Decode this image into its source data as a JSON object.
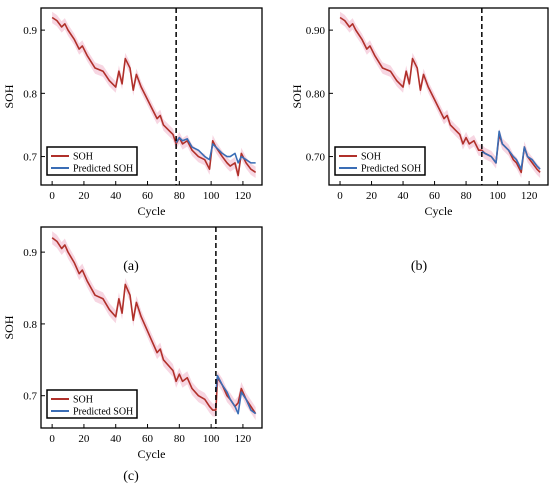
{
  "figure": {
    "panel_labels": [
      "(a)",
      "(b)",
      "(c)"
    ]
  },
  "colors": {
    "soh": "#b0302a",
    "pred": "#3a6db5",
    "band": "#f4c8d8",
    "split": "#000000"
  },
  "chart_data": [
    {
      "type": "line",
      "panel": "(a)",
      "xlabel": "Cycle",
      "ylabel": "SOH",
      "xlim": [
        -7,
        132
      ],
      "ylim": [
        0.655,
        0.935
      ],
      "xticks": [
        0,
        20,
        40,
        60,
        80,
        100,
        120
      ],
      "yticks": [
        0.7,
        0.8,
        0.9
      ],
      "ytick_labels": [
        "0.7",
        "0.8",
        "0.9"
      ],
      "split_x": 78,
      "legend": [
        "SOH",
        "Predicted SOH"
      ],
      "legend_position": "bottom-left",
      "series": [
        {
          "name": "SOH",
          "x": [
            0,
            3,
            6,
            8,
            10,
            14,
            17,
            19,
            22,
            27,
            32,
            36,
            40,
            42,
            44,
            46,
            49,
            51,
            53,
            56,
            60,
            62,
            66,
            68,
            70,
            74,
            76,
            78,
            80,
            82,
            85,
            88,
            92,
            96,
            99,
            101,
            103,
            107,
            110,
            112,
            115,
            117,
            119,
            122,
            125,
            128
          ],
          "y": [
            0.92,
            0.915,
            0.905,
            0.91,
            0.9,
            0.885,
            0.87,
            0.875,
            0.86,
            0.84,
            0.835,
            0.82,
            0.81,
            0.835,
            0.815,
            0.855,
            0.84,
            0.805,
            0.83,
            0.81,
            0.79,
            0.78,
            0.76,
            0.765,
            0.75,
            0.74,
            0.735,
            0.72,
            0.73,
            0.72,
            0.725,
            0.71,
            0.7,
            0.695,
            0.68,
            0.725,
            0.715,
            0.7,
            0.69,
            0.685,
            0.69,
            0.67,
            0.705,
            0.69,
            0.68,
            0.675
          ]
        },
        {
          "name": "Predicted SOH",
          "x": [
            78,
            80,
            82,
            85,
            88,
            92,
            96,
            99,
            101,
            103,
            107,
            110,
            112,
            115,
            117,
            119,
            122,
            125,
            128
          ],
          "y": [
            0.722,
            0.73,
            0.725,
            0.728,
            0.715,
            0.71,
            0.7,
            0.695,
            0.72,
            0.715,
            0.705,
            0.7,
            0.7,
            0.705,
            0.69,
            0.7,
            0.695,
            0.69,
            0.69
          ]
        }
      ]
    },
    {
      "type": "line",
      "panel": "(b)",
      "xlabel": "Cycle",
      "ylabel": "SOH",
      "xlim": [
        -7,
        132
      ],
      "ylim": [
        0.655,
        0.935
      ],
      "xticks": [
        0,
        20,
        40,
        60,
        80,
        100,
        120
      ],
      "yticks": [
        0.7,
        0.8,
        0.9
      ],
      "ytick_labels": [
        "0.70",
        "0.80",
        "0.90"
      ],
      "split_x": 90,
      "legend": [
        "SOH",
        "Predicted SOH"
      ],
      "legend_position": "bottom-left",
      "series": [
        {
          "name": "SOH",
          "x": [
            0,
            3,
            6,
            8,
            10,
            14,
            17,
            19,
            22,
            27,
            32,
            36,
            40,
            42,
            44,
            46,
            49,
            51,
            53,
            56,
            60,
            62,
            66,
            68,
            70,
            74,
            76,
            78,
            80,
            82,
            85,
            88,
            90,
            92,
            96,
            99,
            101,
            103,
            107,
            110,
            112,
            115,
            117,
            119,
            122,
            125,
            127
          ],
          "y": [
            0.92,
            0.915,
            0.905,
            0.91,
            0.9,
            0.885,
            0.87,
            0.875,
            0.86,
            0.84,
            0.835,
            0.82,
            0.81,
            0.835,
            0.815,
            0.855,
            0.84,
            0.805,
            0.83,
            0.81,
            0.79,
            0.78,
            0.76,
            0.765,
            0.75,
            0.74,
            0.735,
            0.72,
            0.73,
            0.72,
            0.725,
            0.71,
            0.71,
            0.705,
            0.7,
            0.69,
            0.735,
            0.72,
            0.71,
            0.695,
            0.69,
            0.675,
            0.715,
            0.7,
            0.69,
            0.68,
            0.675
          ]
        },
        {
          "name": "Predicted SOH",
          "x": [
            90,
            92,
            96,
            99,
            101,
            103,
            107,
            110,
            112,
            115,
            117,
            119,
            122,
            125,
            127
          ],
          "y": [
            0.708,
            0.705,
            0.7,
            0.69,
            0.74,
            0.72,
            0.71,
            0.7,
            0.695,
            0.68,
            0.715,
            0.7,
            0.695,
            0.685,
            0.68
          ]
        }
      ]
    },
    {
      "type": "line",
      "panel": "(c)",
      "xlabel": "Cycle",
      "ylabel": "SOH",
      "xlim": [
        -7,
        132
      ],
      "ylim": [
        0.655,
        0.935
      ],
      "xticks": [
        0,
        20,
        40,
        60,
        80,
        100,
        120
      ],
      "yticks": [
        0.7,
        0.8,
        0.9
      ],
      "ytick_labels": [
        "0.7",
        "0.8",
        "0.9"
      ],
      "split_x": 103,
      "legend": [
        "SOH",
        "Predicted SOH"
      ],
      "legend_position": "bottom-left",
      "series": [
        {
          "name": "SOH",
          "x": [
            0,
            3,
            6,
            8,
            10,
            14,
            17,
            19,
            22,
            27,
            32,
            36,
            40,
            42,
            44,
            46,
            49,
            51,
            53,
            56,
            60,
            62,
            66,
            68,
            70,
            74,
            76,
            78,
            80,
            82,
            85,
            88,
            92,
            96,
            99,
            101,
            103,
            104,
            107,
            110,
            112,
            115,
            117,
            119,
            122,
            125,
            128
          ],
          "y": [
            0.92,
            0.915,
            0.905,
            0.91,
            0.9,
            0.885,
            0.87,
            0.875,
            0.86,
            0.84,
            0.835,
            0.82,
            0.81,
            0.835,
            0.815,
            0.855,
            0.84,
            0.805,
            0.83,
            0.81,
            0.79,
            0.78,
            0.76,
            0.765,
            0.75,
            0.74,
            0.735,
            0.72,
            0.73,
            0.72,
            0.725,
            0.71,
            0.7,
            0.695,
            0.685,
            0.68,
            0.68,
            0.725,
            0.715,
            0.7,
            0.695,
            0.685,
            0.69,
            0.71,
            0.695,
            0.685,
            0.675
          ]
        },
        {
          "name": "Predicted SOH",
          "x": [
            103,
            104,
            107,
            110,
            112,
            115,
            117,
            119,
            122,
            125,
            128
          ],
          "y": [
            0.705,
            0.728,
            0.715,
            0.705,
            0.695,
            0.685,
            0.675,
            0.705,
            0.695,
            0.68,
            0.675
          ]
        }
      ]
    }
  ]
}
